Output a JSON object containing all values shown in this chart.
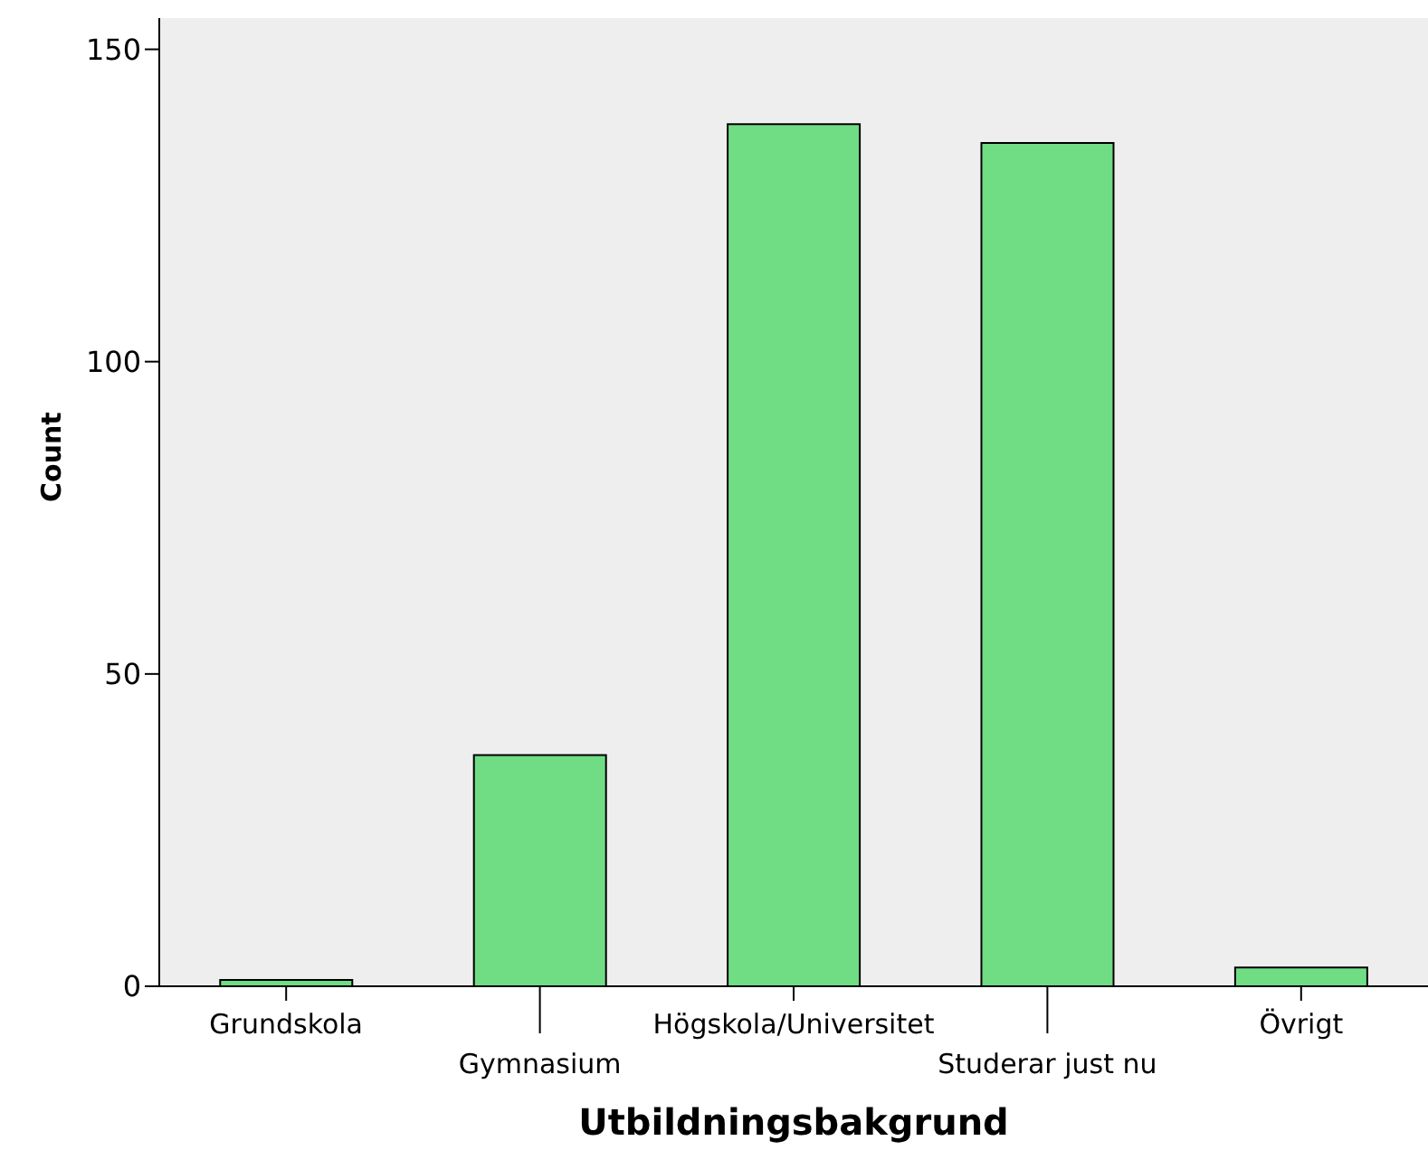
{
  "chart_data": {
    "type": "bar",
    "xlabel": "Utbildningsbakgrund",
    "ylabel": "Count",
    "categories": [
      "Grundskola",
      "Gymnasium",
      "Högskola/Universitet",
      "Studerar just nu",
      "Övrigt"
    ],
    "values": [
      1,
      37,
      138,
      135,
      3
    ],
    "color": "#70dd85",
    "ylim": [
      0,
      155
    ],
    "yticks": [
      0,
      50,
      100,
      150
    ],
    "grid": false
  }
}
